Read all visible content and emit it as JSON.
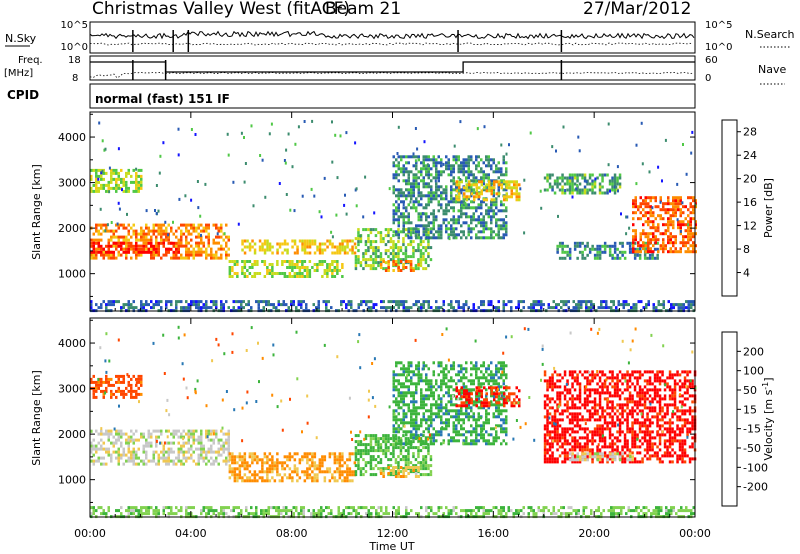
{
  "header": {
    "title": "Christmas Valley West (fitACF)",
    "beam": "Beam 21",
    "date": "27/Mar/2012"
  },
  "params": {
    "nsky_label": "N.Sky",
    "nsearch_label": "N.Search",
    "freq_label_1": "Freq.",
    "freq_label_2": "[MHz]",
    "nave_label": "Nave",
    "cpid_label": "CPID",
    "mode_text": "normal (fast) 151 IF",
    "noise_ticks_left": [
      "10^5",
      "10^0"
    ],
    "noise_ticks_right": [
      "10^5",
      "10^0"
    ],
    "freq_ticks": [
      "18",
      "8"
    ],
    "nave_ticks": [
      "60",
      "0"
    ]
  },
  "time_axis": {
    "label": "Time UT",
    "ticks": [
      "00:00",
      "04:00",
      "08:00",
      "12:00",
      "16:00",
      "20:00",
      "00:00"
    ],
    "range_hours": [
      0,
      24
    ]
  },
  "colors": {
    "power_scale": [
      "#1414ff",
      "#285ab4",
      "#3c8c6e",
      "#50c846",
      "#c8dc1e",
      "#f5c814",
      "#ff8c00",
      "#ff4600",
      "#ff0000"
    ],
    "velocity_scale": [
      "#1e32c8",
      "#2878b4",
      "#3cb43c",
      "#82d250",
      "#c8c8c8",
      "#f0c850",
      "#ff8c00",
      "#ff4600",
      "#ff0000"
    ]
  },
  "chart_data": [
    {
      "type": "heatmap",
      "name": "power",
      "xlabel": "",
      "ylabel": "Slant Range [km]",
      "y_ticks": [
        1000,
        2000,
        3000,
        4000
      ],
      "ylim": [
        180,
        4550
      ],
      "colorbar_label": "Power [dB]",
      "colorbar_ticks": [
        4,
        8,
        12,
        16,
        20,
        24,
        28
      ],
      "colorbar_range": [
        0,
        30
      ],
      "echo_regions": [
        {
          "t": [
            0.0,
            5.5
          ],
          "r": [
            1350,
            2100
          ],
          "value": 22
        },
        {
          "t": [
            0.0,
            3.5
          ],
          "r": [
            1450,
            1700
          ],
          "value": 28
        },
        {
          "t": [
            5.5,
            10.0
          ],
          "r": [
            950,
            1300
          ],
          "value": 14
        },
        {
          "t": [
            6.0,
            10.5
          ],
          "r": [
            1450,
            1750
          ],
          "value": 18
        },
        {
          "t": [
            10.5,
            13.5
          ],
          "r": [
            1100,
            2000
          ],
          "value": 12
        },
        {
          "t": [
            11.5,
            13.0
          ],
          "r": [
            1050,
            1300
          ],
          "value": 22
        },
        {
          "t": [
            0.0,
            2.0
          ],
          "r": [
            2800,
            3300
          ],
          "value": 14
        },
        {
          "t": [
            12.0,
            16.5
          ],
          "r": [
            1800,
            3600
          ],
          "value": 8
        },
        {
          "t": [
            14.5,
            17.0
          ],
          "r": [
            2650,
            3050
          ],
          "value": 18
        },
        {
          "t": [
            18.0,
            21.0
          ],
          "r": [
            2800,
            3200
          ],
          "value": 10
        },
        {
          "t": [
            18.5,
            22.5
          ],
          "r": [
            1350,
            1700
          ],
          "value": 8
        },
        {
          "t": [
            21.5,
            24.0
          ],
          "r": [
            1500,
            2700
          ],
          "value": 24
        },
        {
          "t": [
            0.0,
            24.0
          ],
          "r": [
            200,
            420
          ],
          "value": 6
        }
      ]
    },
    {
      "type": "heatmap",
      "name": "velocity",
      "xlabel": "Time UT",
      "ylabel": "Slant Range [km]",
      "y_ticks": [
        1000,
        2000,
        3000,
        4000
      ],
      "ylim": [
        180,
        4550
      ],
      "colorbar_label": "Velocity [m s^-1]",
      "colorbar_ticks": [
        200,
        100,
        50,
        15,
        -15,
        -50,
        -100,
        -200
      ],
      "echo_regions": [
        {
          "t": [
            0.0,
            5.5
          ],
          "r": [
            1350,
            2100
          ],
          "value": 0
        },
        {
          "t": [
            5.5,
            10.5
          ],
          "r": [
            950,
            1600
          ],
          "value": -60
        },
        {
          "t": [
            10.5,
            13.5
          ],
          "r": [
            1100,
            2000
          ],
          "value": 60
        },
        {
          "t": [
            11.5,
            13.0
          ],
          "r": [
            1050,
            1300
          ],
          "value": -40
        },
        {
          "t": [
            0.0,
            2.0
          ],
          "r": [
            2800,
            3300
          ],
          "value": -120
        },
        {
          "t": [
            12.0,
            16.5
          ],
          "r": [
            1800,
            3600
          ],
          "value": 80
        },
        {
          "t": [
            14.5,
            17.0
          ],
          "r": [
            2650,
            3050
          ],
          "value": -200
        },
        {
          "t": [
            18.0,
            24.0
          ],
          "r": [
            1400,
            3400
          ],
          "value": -220
        },
        {
          "t": [
            19.0,
            21.5
          ],
          "r": [
            1450,
            1600
          ],
          "value": 0
        },
        {
          "t": [
            0.0,
            24.0
          ],
          "r": [
            200,
            420
          ],
          "value": 40
        }
      ]
    }
  ]
}
